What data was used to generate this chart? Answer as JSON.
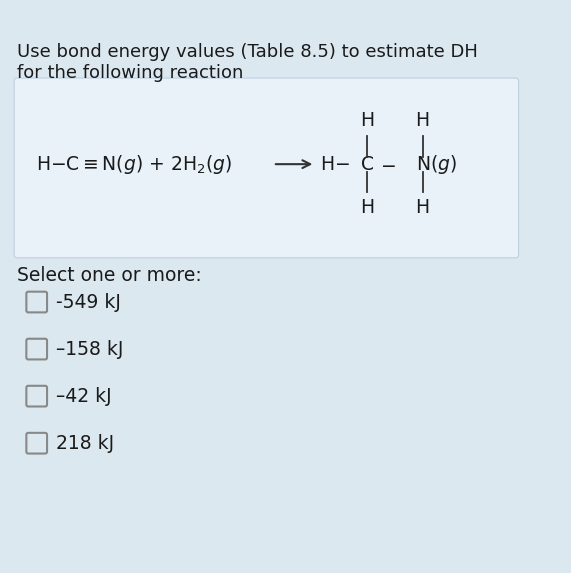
{
  "background_color": "#dce8f0",
  "title_line1": "Use bond energy values (Table 8.5) to estimate DH",
  "title_line2": "for the following reaction",
  "title_fontsize": 13.0,
  "reaction_box_color": "#e8f2f8",
  "reaction_box_edge": "#c0d0e0",
  "options": [
    "-549 kJ",
    "–158 kJ",
    "–42 kJ",
    "218 kJ"
  ],
  "select_text": "Select one or more:",
  "option_fontsize": 13.5,
  "select_fontsize": 13.5,
  "text_color": "#1a1a1a",
  "bond_color": "#333333",
  "checkbox_color": "#888888",
  "italic_color": "#1a1a1a"
}
